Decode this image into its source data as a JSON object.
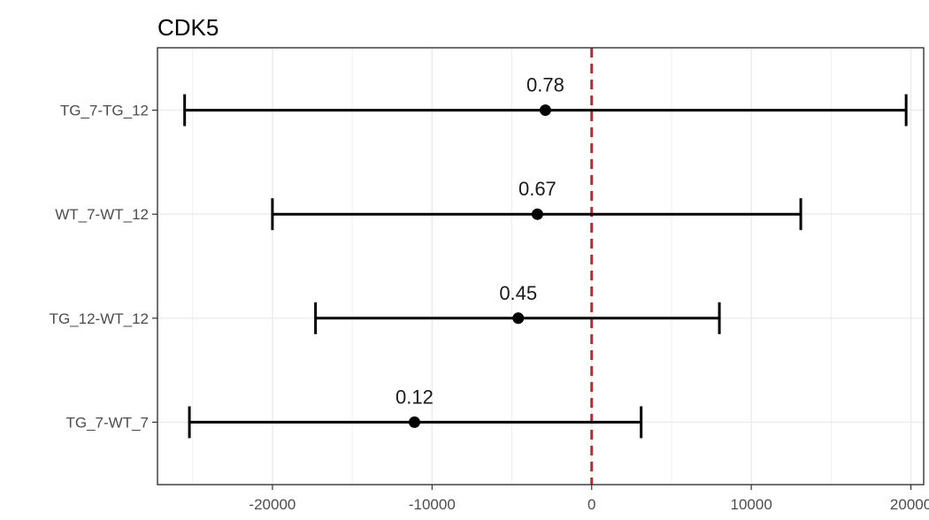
{
  "chart_data": {
    "type": "scatter",
    "subtype": "forest-plot",
    "title": "CDK5",
    "xlabel": "",
    "ylabel": "",
    "xlim": [
      -27200,
      20800
    ],
    "xticks": [
      -20000,
      -10000,
      0,
      10000,
      20000
    ],
    "xtick_labels": [
      "-20000",
      "-10000",
      "0",
      "10000",
      "20000"
    ],
    "grid": true,
    "reference_line": {
      "x": 0,
      "style": "dashed",
      "color": "#c0282d"
    },
    "categories": [
      "TG_7-TG_12",
      "WT_7-WT_12",
      "TG_12-WT_12",
      "TG_7-WT_7"
    ],
    "estimates": [
      -2900,
      -3400,
      -4600,
      -11100
    ],
    "lower": [
      -25500,
      -20000,
      -17300,
      -25200
    ],
    "upper": [
      19700,
      13100,
      8000,
      3100
    ],
    "labels": [
      "0.78",
      "0.67",
      "0.45",
      "0.12"
    ],
    "colors": {
      "point": "#000000",
      "gridline": "#ebebeb",
      "frame": "#333333"
    }
  }
}
